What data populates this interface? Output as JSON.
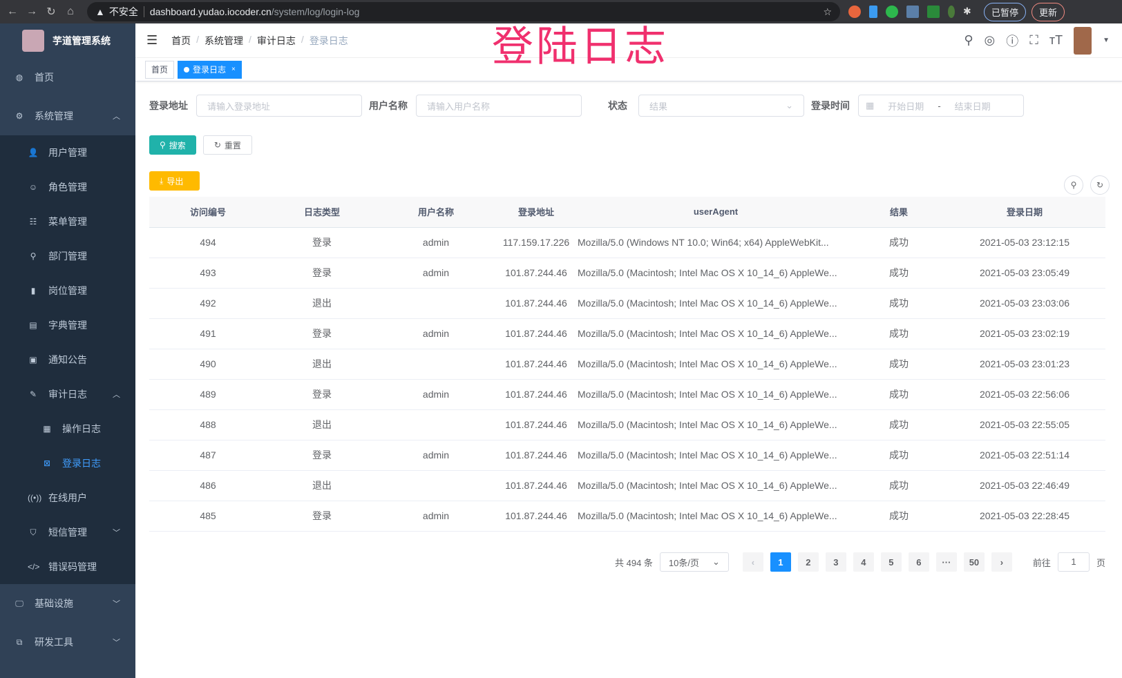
{
  "browser": {
    "warning": "不安全",
    "host": "dashboard.yudao.iocoder.cn",
    "path": "/system/log/login-log",
    "paused": "已暂停",
    "update": "更新"
  },
  "sidebar": {
    "title": "芋道管理系统",
    "items": [
      {
        "label": "首页",
        "icon": "dashboard-icon"
      },
      {
        "label": "系统管理",
        "icon": "gear-icon",
        "expanded": true,
        "children": [
          {
            "label": "用户管理",
            "icon": "user-icon"
          },
          {
            "label": "角色管理",
            "icon": "peoples-icon"
          },
          {
            "label": "菜单管理",
            "icon": "tree-table-icon"
          },
          {
            "label": "部门管理",
            "icon": "tree-icon"
          },
          {
            "label": "岗位管理",
            "icon": "post-icon"
          },
          {
            "label": "字典管理",
            "icon": "dict-icon"
          },
          {
            "label": "通知公告",
            "icon": "message-icon"
          },
          {
            "label": "审计日志",
            "icon": "log-icon",
            "expanded": true,
            "children": [
              {
                "label": "操作日志",
                "icon": "form-icon"
              },
              {
                "label": "登录日志",
                "icon": "logininfor-icon",
                "active": true
              }
            ]
          },
          {
            "label": "在线用户",
            "icon": "online-icon"
          },
          {
            "label": "短信管理",
            "icon": "validCode-icon"
          },
          {
            "label": "错误码管理",
            "icon": "code-icon"
          }
        ]
      },
      {
        "label": "基础设施",
        "icon": "monitor-icon"
      },
      {
        "label": "研发工具",
        "icon": "tool-icon"
      }
    ]
  },
  "header": {
    "breadcrumb": [
      "首页",
      "系统管理",
      "审计日志",
      "登录日志"
    ],
    "stamp": "登陆日志"
  },
  "tags": [
    {
      "label": "首页"
    },
    {
      "label": "登录日志",
      "active": true
    }
  ],
  "filters": {
    "ip_label": "登录地址",
    "ip_placeholder": "请输入登录地址",
    "user_label": "用户名称",
    "user_placeholder": "请输入用户名称",
    "status_label": "状态",
    "status_placeholder": "结果",
    "time_label": "登录时间",
    "start_placeholder": "开始日期",
    "range_sep": "-",
    "end_placeholder": "结束日期"
  },
  "buttons": {
    "search": "搜索",
    "reset": "重置",
    "export": "导出"
  },
  "table": {
    "columns": [
      "访问编号",
      "日志类型",
      "用户名称",
      "登录地址",
      "userAgent",
      "结果",
      "登录日期"
    ],
    "rows": [
      [
        "494",
        "登录",
        "admin",
        "117.159.17.226",
        "Mozilla/5.0 (Windows NT 10.0; Win64; x64) AppleWebKit...",
        "成功",
        "2021-05-03 23:12:15"
      ],
      [
        "493",
        "登录",
        "admin",
        "101.87.244.46",
        "Mozilla/5.0 (Macintosh; Intel Mac OS X 10_14_6) AppleWe...",
        "成功",
        "2021-05-03 23:05:49"
      ],
      [
        "492",
        "退出",
        "",
        "101.87.244.46",
        "Mozilla/5.0 (Macintosh; Intel Mac OS X 10_14_6) AppleWe...",
        "成功",
        "2021-05-03 23:03:06"
      ],
      [
        "491",
        "登录",
        "admin",
        "101.87.244.46",
        "Mozilla/5.0 (Macintosh; Intel Mac OS X 10_14_6) AppleWe...",
        "成功",
        "2021-05-03 23:02:19"
      ],
      [
        "490",
        "退出",
        "",
        "101.87.244.46",
        "Mozilla/5.0 (Macintosh; Intel Mac OS X 10_14_6) AppleWe...",
        "成功",
        "2021-05-03 23:01:23"
      ],
      [
        "489",
        "登录",
        "admin",
        "101.87.244.46",
        "Mozilla/5.0 (Macintosh; Intel Mac OS X 10_14_6) AppleWe...",
        "成功",
        "2021-05-03 22:56:06"
      ],
      [
        "488",
        "退出",
        "",
        "101.87.244.46",
        "Mozilla/5.0 (Macintosh; Intel Mac OS X 10_14_6) AppleWe...",
        "成功",
        "2021-05-03 22:55:05"
      ],
      [
        "487",
        "登录",
        "admin",
        "101.87.244.46",
        "Mozilla/5.0 (Macintosh; Intel Mac OS X 10_14_6) AppleWe...",
        "成功",
        "2021-05-03 22:51:14"
      ],
      [
        "486",
        "退出",
        "",
        "101.87.244.46",
        "Mozilla/5.0 (Macintosh; Intel Mac OS X 10_14_6) AppleWe...",
        "成功",
        "2021-05-03 22:46:49"
      ],
      [
        "485",
        "登录",
        "admin",
        "101.87.244.46",
        "Mozilla/5.0 (Macintosh; Intel Mac OS X 10_14_6) AppleWe...",
        "成功",
        "2021-05-03 22:28:45"
      ]
    ]
  },
  "pagination": {
    "total": "共 494 条",
    "page_size": "10条/页",
    "pages": [
      "1",
      "2",
      "3",
      "4",
      "5",
      "6",
      "···",
      "50"
    ],
    "current": "1",
    "goto_label": "前往",
    "goto_value": "1",
    "goto_suffix": "页"
  }
}
